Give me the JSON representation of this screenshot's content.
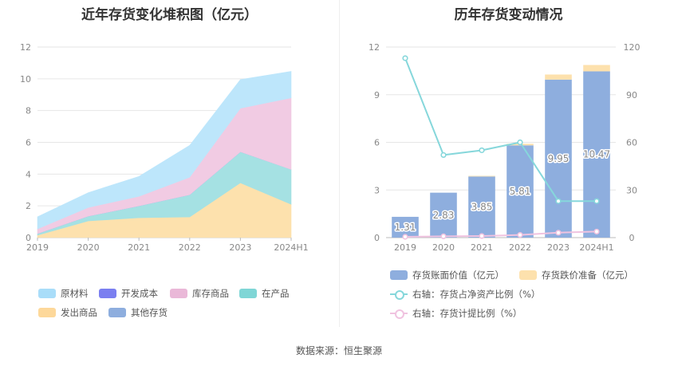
{
  "source_text": "数据来源：恒生聚源",
  "chart_data": [
    {
      "type": "area",
      "stacked": true,
      "title": "近年存货变化堆积图（亿元）",
      "categories": [
        "2019",
        "2020",
        "2021",
        "2022",
        "2023",
        "2024H1"
      ],
      "y_ticks": [
        "0",
        "2",
        "4",
        "6",
        "8",
        "10",
        "12"
      ],
      "ylim": [
        0,
        12
      ],
      "grid": true,
      "series": [
        {
          "name": "其他存货",
          "color": "#8eaede",
          "values": [
            0.0,
            0.0,
            0.0,
            0.0,
            0.0,
            0.0
          ]
        },
        {
          "name": "发出商品",
          "color": "#fde1ad",
          "values": [
            0.15,
            1.05,
            1.25,
            1.3,
            3.45,
            2.1
          ]
        },
        {
          "name": "在产品",
          "color": "#a5e1e3",
          "values": [
            0.1,
            0.3,
            0.75,
            1.4,
            1.95,
            2.2
          ]
        },
        {
          "name": "开发成本",
          "color": "#8185f0",
          "values": [
            0.0,
            0.0,
            0.0,
            0.0,
            0.0,
            0.0
          ]
        },
        {
          "name": "库存商品",
          "color": "#f1cbe3",
          "values": [
            0.3,
            0.55,
            0.6,
            1.1,
            2.75,
            4.5
          ]
        },
        {
          "name": "原材料",
          "color": "#bde6fb",
          "values": [
            0.76,
            0.93,
            1.25,
            2.01,
            1.8,
            1.67
          ]
        }
      ],
      "legend": [
        {
          "name": "原材料",
          "color": "#a9ddf9"
        },
        {
          "name": "开发成本",
          "color": "#7b7ff0"
        },
        {
          "name": "库存商品",
          "color": "#eab8d8"
        },
        {
          "name": "在产品",
          "color": "#7fd6d6"
        },
        {
          "name": "发出商品",
          "color": "#fdd89a"
        },
        {
          "name": "其他存货",
          "color": "#8eaede"
        }
      ]
    },
    {
      "type": "bar",
      "title": "历年存货变动情况",
      "categories": [
        "2019",
        "2020",
        "2021",
        "2022",
        "2023",
        "2024H1"
      ],
      "y_ticks_left": [
        "0",
        "3",
        "6",
        "9",
        "12"
      ],
      "ylim_left": [
        0,
        12
      ],
      "y_ticks_right": [
        "0",
        "30",
        "60",
        "90",
        "120"
      ],
      "ylim_right": [
        0,
        120
      ],
      "series": [
        {
          "name": "存货账面价值（亿元）",
          "color": "#8eaede",
          "axis": "left",
          "values": [
            1.31,
            2.83,
            3.85,
            5.81,
            9.95,
            10.47
          ],
          "labels": [
            "1.31",
            "2.83",
            "3.85",
            "5.81",
            "9.95",
            "10.47"
          ]
        },
        {
          "name": "存货跌价准备（亿元）",
          "color": "#fde1ad",
          "axis": "left",
          "values": [
            0.0,
            0.0,
            0.04,
            0.1,
            0.32,
            0.4
          ]
        },
        {
          "name": "右轴：存货占净资产比例（%）",
          "type": "line",
          "color": "#86d7db",
          "axis": "right",
          "values": [
            113,
            52,
            55,
            60,
            23,
            23
          ]
        },
        {
          "name": "右轴：存货计提比例（%）",
          "type": "line",
          "color": "#f0c3e0",
          "axis": "right",
          "values": [
            0.5,
            0.8,
            1.0,
            1.7,
            3.1,
            3.8
          ]
        }
      ]
    }
  ]
}
